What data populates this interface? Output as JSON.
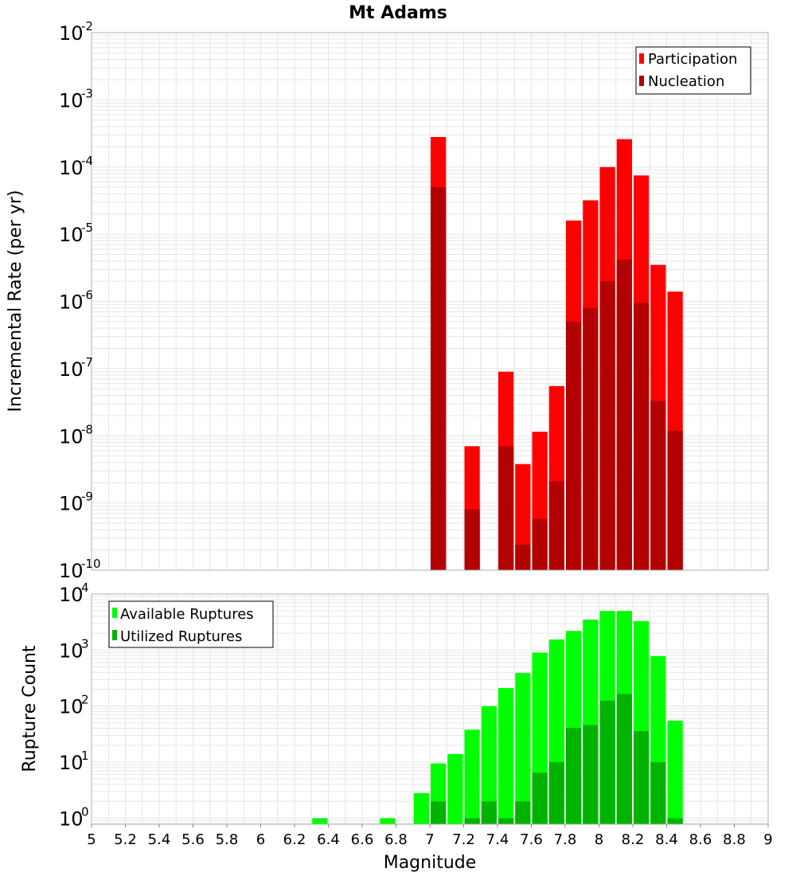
{
  "title": "Mt Adams",
  "colors": {
    "participation": "#ff0000",
    "nucleation": "#b30000",
    "available": "#00ff00",
    "utilized": "#00b300",
    "grid": "#e6e6e6",
    "frame": "#b0b0b0"
  },
  "chart_data": [
    {
      "type": "bar",
      "ylabel": "Incremental Rate (per yr)",
      "yscale": "log",
      "ylim": [
        1e-10,
        0.01
      ],
      "y_ticks": [
        {
          "base": "10",
          "exp": "-2"
        },
        {
          "base": "10",
          "exp": "-3"
        },
        {
          "base": "10",
          "exp": "-4"
        },
        {
          "base": "10",
          "exp": "-5"
        },
        {
          "base": "10",
          "exp": "-6"
        },
        {
          "base": "10",
          "exp": "-7"
        },
        {
          "base": "10",
          "exp": "-8"
        },
        {
          "base": "10",
          "exp": "-9"
        },
        {
          "base": "10",
          "exp": "-10"
        }
      ],
      "legend": {
        "position": "top-right",
        "entries": [
          "Participation",
          "Nucleation"
        ]
      },
      "series": [
        {
          "name": "Participation",
          "x": [
            7.05,
            7.25,
            7.45,
            7.55,
            7.65,
            7.75,
            7.85,
            7.95,
            8.05,
            8.15,
            8.25,
            8.35,
            8.45
          ],
          "values": [
            0.00028,
            7e-09,
            9e-08,
            3.8e-09,
            1.15e-08,
            5.5e-08,
            1.6e-05,
            3.2e-05,
            0.0001,
            0.00026,
            7.5e-05,
            3.5e-06,
            1.4e-06
          ]
        },
        {
          "name": "Nucleation",
          "x": [
            7.05,
            7.25,
            7.45,
            7.55,
            7.65,
            7.75,
            7.85,
            7.95,
            8.05,
            8.15,
            8.25,
            8.35,
            8.45
          ],
          "values": [
            5e-05,
            8e-10,
            7e-09,
            2.4e-10,
            5.8e-10,
            2.1e-09,
            5e-07,
            8e-07,
            2e-06,
            4.2e-06,
            9.5e-07,
            3.3e-08,
            1.2e-08
          ]
        }
      ]
    },
    {
      "type": "bar",
      "ylabel": "Rupture Count",
      "xlabel": "Magnitude",
      "yscale": "log",
      "ylim": [
        0.78,
        10000
      ],
      "xlim": [
        5,
        9
      ],
      "x_ticks": [
        "5",
        "5.2",
        "5.4",
        "5.6",
        "5.8",
        "6",
        "6.2",
        "6.4",
        "6.6",
        "6.8",
        "7",
        "7.2",
        "7.4",
        "7.6",
        "7.8",
        "8",
        "8.2",
        "8.4",
        "8.6",
        "8.8",
        "9"
      ],
      "y_ticks": [
        {
          "base": "10",
          "exp": "4"
        },
        {
          "base": "10",
          "exp": "3"
        },
        {
          "base": "10",
          "exp": "2"
        },
        {
          "base": "10",
          "exp": "1"
        },
        {
          "base": "10",
          "exp": "0"
        }
      ],
      "legend": {
        "position": "top-left",
        "entries": [
          "Available Ruptures",
          "Utilized Ruptures"
        ]
      },
      "series": [
        {
          "name": "Available Ruptures",
          "x": [
            6.35,
            6.75,
            6.95,
            7.05,
            7.15,
            7.25,
            7.35,
            7.45,
            7.55,
            7.65,
            7.75,
            7.85,
            7.95,
            8.05,
            8.15,
            8.25,
            8.35,
            8.45
          ],
          "values": [
            1,
            1,
            2.8,
            9.5,
            14,
            38,
            100,
            210,
            390,
            900,
            1550,
            2200,
            3500,
            5000,
            5000,
            3300,
            780,
            55
          ]
        },
        {
          "name": "Utilized Ruptures",
          "x": [
            6.35,
            6.75,
            6.95,
            7.05,
            7.15,
            7.25,
            7.35,
            7.45,
            7.55,
            7.65,
            7.75,
            7.85,
            7.95,
            8.05,
            8.15,
            8.25,
            8.35,
            8.45
          ],
          "values": [
            0,
            0,
            0,
            2,
            0,
            1,
            2,
            1,
            2,
            6.5,
            10,
            41,
            46,
            125,
            165,
            36,
            10,
            1
          ]
        }
      ]
    }
  ]
}
